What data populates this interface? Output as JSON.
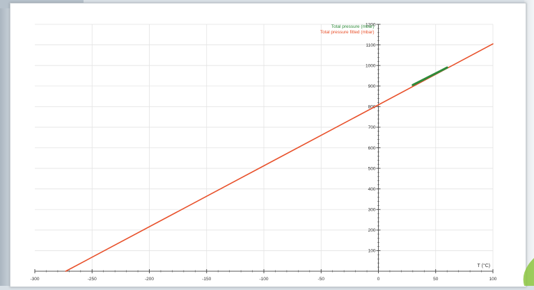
{
  "chart_data": {
    "type": "line",
    "title": "",
    "xlabel": "T (°C)",
    "ylabel": "",
    "xlim": [
      -300,
      100
    ],
    "ylim": [
      0,
      1200
    ],
    "x_ticks": [
      -300,
      -250,
      -200,
      -150,
      -100,
      -50,
      0,
      50,
      100
    ],
    "x_tick_labels": [
      "-300",
      "-250",
      "-200",
      "-150",
      "-100",
      "-50",
      "0",
      "50",
      "100"
    ],
    "y_ticks": [
      100,
      200,
      300,
      400,
      500,
      600,
      700,
      800,
      900,
      1000,
      1100,
      1200
    ],
    "y_tick_labels": [
      "100",
      "200",
      "300",
      "400",
      "500",
      "600",
      "700",
      "800",
      "900",
      "1000",
      "1100",
      "1200"
    ],
    "grid": true,
    "legend_position": "top-right",
    "series": [
      {
        "name": "Total pressure (mbar)",
        "color": "#2e8b3a",
        "x": [
          30,
          60
        ],
        "y": [
          905,
          990
        ]
      },
      {
        "name": "Total pressure fitted (mbar)",
        "color": "#e8502a",
        "x": [
          -273,
          100
        ],
        "y": [
          0,
          1105
        ]
      }
    ]
  }
}
